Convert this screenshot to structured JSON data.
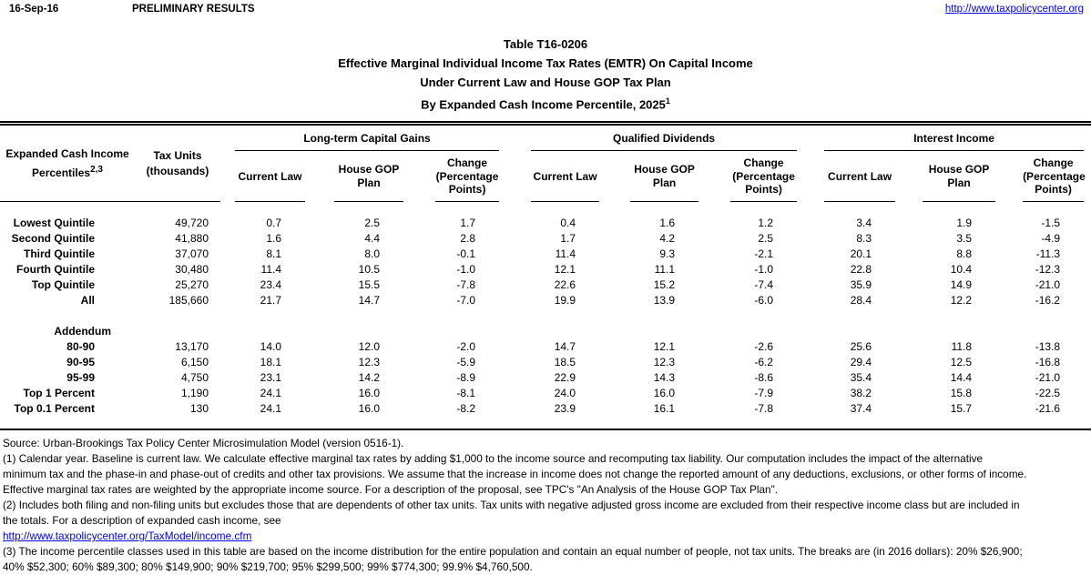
{
  "topbar": {
    "date": "16-Sep-16",
    "preliminary": "PRELIMINARY RESULTS",
    "site_url": "http://www.taxpolicycenter.org"
  },
  "title": {
    "line1": "Table T16-0206",
    "line2": "Effective Marginal Individual Income Tax Rates (EMTR) On Capital Income",
    "line3": "Under Current Law and House GOP Tax Plan",
    "line4": "By Expanded Cash Income Percentile, 2025",
    "line4_sup": "1"
  },
  "table": {
    "col1_header_line1": "Expanded Cash Income",
    "col1_header_line2": "Percentiles",
    "col1_header_sup": "2,3",
    "col2_header": [
      "Tax Units",
      "(thousands)"
    ],
    "groups": [
      "Long-term Capital Gains",
      "Qualified Dividends",
      "Interest Income"
    ],
    "subheaders": [
      [
        "Current Law"
      ],
      [
        "House GOP",
        "Plan"
      ],
      [
        "Change",
        "(Percentage",
        "Points)"
      ]
    ],
    "rows": [
      {
        "label": "Lowest Quintile",
        "tax_units": "49,720",
        "values": [
          "0.7",
          "2.5",
          "1.7",
          "0.4",
          "1.6",
          "1.2",
          "3.4",
          "1.9",
          "-1.5"
        ]
      },
      {
        "label": "Second Quintile",
        "tax_units": "41,880",
        "values": [
          "1.6",
          "4.4",
          "2.8",
          "1.7",
          "4.2",
          "2.5",
          "8.3",
          "3.5",
          "-4.9"
        ]
      },
      {
        "label": "Third Quintile",
        "tax_units": "37,070",
        "values": [
          "8.1",
          "8.0",
          "-0.1",
          "11.4",
          "9.3",
          "-2.1",
          "20.1",
          "8.8",
          "-11.3"
        ]
      },
      {
        "label": "Fourth Quintile",
        "tax_units": "30,480",
        "values": [
          "11.4",
          "10.5",
          "-1.0",
          "12.1",
          "11.1",
          "-1.0",
          "22.8",
          "10.4",
          "-12.3"
        ]
      },
      {
        "label": "Top Quintile",
        "tax_units": "25,270",
        "values": [
          "23.4",
          "15.5",
          "-7.8",
          "22.6",
          "15.2",
          "-7.4",
          "35.9",
          "14.9",
          "-21.0"
        ]
      },
      {
        "label": "All",
        "tax_units": "185,660",
        "values": [
          "21.7",
          "14.7",
          "-7.0",
          "19.9",
          "13.9",
          "-6.0",
          "28.4",
          "12.2",
          "-16.2"
        ]
      },
      {
        "type": "blank"
      },
      {
        "type": "section",
        "label": "Addendum"
      },
      {
        "label": "80-90",
        "tax_units": "13,170",
        "values": [
          "14.0",
          "12.0",
          "-2.0",
          "14.7",
          "12.1",
          "-2.6",
          "25.6",
          "11.8",
          "-13.8"
        ]
      },
      {
        "label": "90-95",
        "tax_units": "6,150",
        "values": [
          "18.1",
          "12.3",
          "-5.9",
          "18.5",
          "12.3",
          "-6.2",
          "29.4",
          "12.5",
          "-16.8"
        ]
      },
      {
        "label": "95-99",
        "tax_units": "4,750",
        "values": [
          "23.1",
          "14.2",
          "-8.9",
          "22.9",
          "14.3",
          "-8.6",
          "35.4",
          "14.4",
          "-21.0"
        ]
      },
      {
        "label": "Top 1 Percent",
        "tax_units": "1,190",
        "values": [
          "24.1",
          "16.0",
          "-8.1",
          "24.0",
          "16.0",
          "-7.9",
          "38.2",
          "15.8",
          "-22.5"
        ]
      },
      {
        "label": "Top 0.1 Percent",
        "tax_units": "130",
        "values": [
          "24.1",
          "16.0",
          "-8.2",
          "23.9",
          "16.1",
          "-7.8",
          "37.4",
          "15.7",
          "-21.6"
        ]
      }
    ]
  },
  "footer": {
    "source": "Source: Urban-Brookings Tax Policy Center Microsimulation Model (version 0516-1).",
    "note1": [
      "(1) Calendar year. Baseline is current law. We calculate effective marginal tax rates by adding $1,000 to the income source and recomputing tax liability. Our computation includes the impact of the alternative",
      "minimum tax and the phase-in and phase-out of credits and other tax provisions. We assume that the increase in income does not change the reported amount of any deductions, exclusions, or other forms of income.",
      "Effective marginal tax rates are weighted by the appropriate income source. For a description of the proposal, see TPC's \"An Analysis of the House GOP Tax Plan\"."
    ],
    "note2": [
      "(2) Includes both filing and non-filing units but excludes those that are dependents of other tax units. Tax units with negative adjusted gross income are excluded from their respective income class but are included in",
      "the totals. For a description of expanded cash income, see"
    ],
    "income_link": "http://www.taxpolicycenter.org/TaxModel/income.cfm",
    "note3": [
      "(3) The income percentile classes used in this table are based on the income distribution for the entire population and contain an equal number of people, not tax units. The breaks are (in 2016 dollars): 20% $26,900;",
      "40% $52,300; 60% $89,300; 80% $149,900; 90% $219,700; 95% $299,500; 99% $774,300; 99.9% $4,760,500."
    ]
  }
}
